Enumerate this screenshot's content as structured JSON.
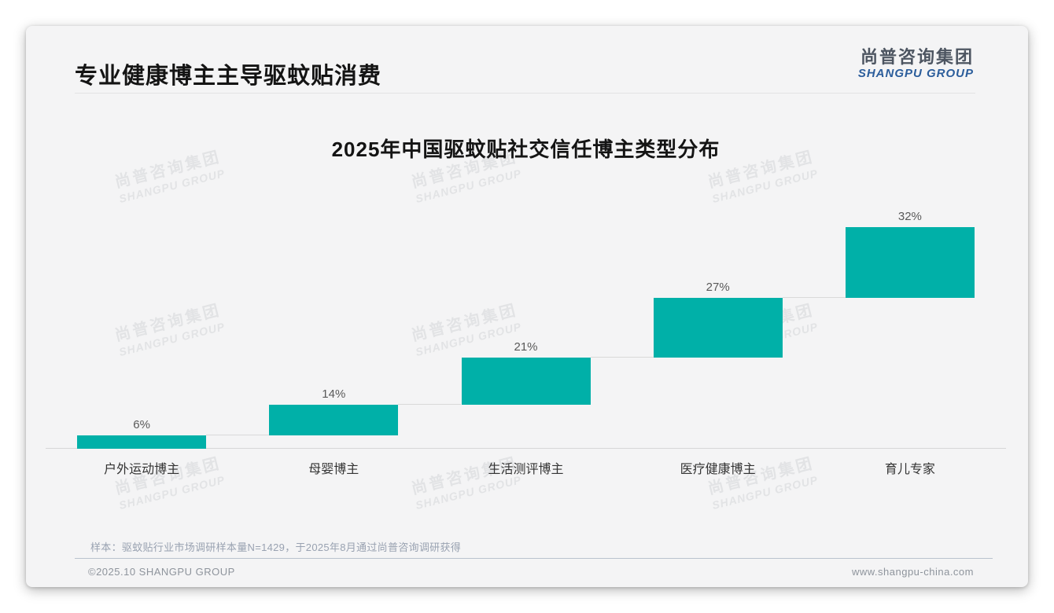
{
  "slide": {
    "title": "专业健康博主主导驱蚊贴消费",
    "logo": {
      "cn": "尚普咨询集团",
      "en": "SHANGPU GROUP"
    },
    "watermark": {
      "cn": "尚普咨询集团",
      "en": "SHANGPU GROUP"
    },
    "note": "样本：驱蚊贴行业市场调研样本量N=1429，于2025年8月通过尚普咨询调研获得",
    "footer": {
      "copyright": "©2025.10 SHANGPU GROUP",
      "website": "www.shangpu-china.com"
    }
  },
  "colors": {
    "accent_teal": "#00b0a8",
    "logo_blue": "#2b5d9b",
    "logo_gray": "#4d5561",
    "connector_gray": "#d9d9d9",
    "card_bg": "#f4f4f5"
  },
  "chart_data": {
    "type": "bar",
    "variant": "waterfall",
    "title": "2025年中国驱蚊贴社交信任博主类型分布",
    "categories": [
      "户外运动博主",
      "母婴博主",
      "生活测评博主",
      "医疗健康博主",
      "育儿专家"
    ],
    "values": [
      6,
      14,
      21,
      27,
      32
    ],
    "value_labels": [
      "6%",
      "14%",
      "21%",
      "27%",
      "32%"
    ],
    "cumulative": [
      6,
      20,
      41,
      68,
      100
    ],
    "unit": "%",
    "ylim": [
      0,
      100
    ],
    "grid": false,
    "legend": false,
    "bar_color": "#00b0a8",
    "value_label_color": "#595959",
    "connector_color": "#d9d9d9",
    "baseline_axis": true
  }
}
